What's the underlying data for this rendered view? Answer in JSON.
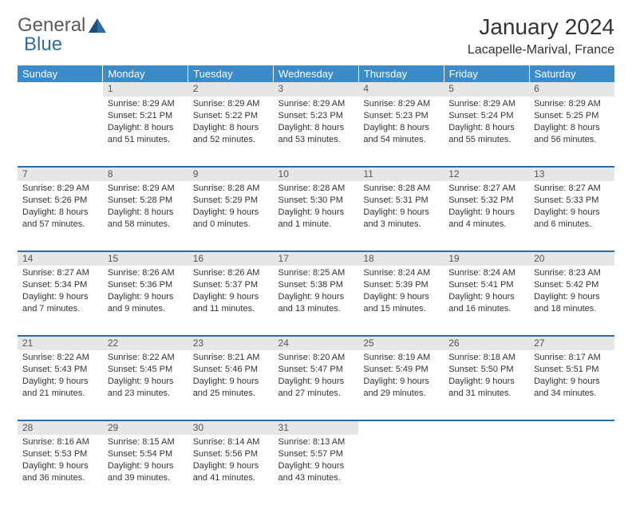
{
  "logo": {
    "text1": "General",
    "text2": "Blue"
  },
  "title": "January 2024",
  "location": "Lacapelle-Marival, France",
  "dayHeaders": [
    "Sunday",
    "Monday",
    "Tuesday",
    "Wednesday",
    "Thursday",
    "Friday",
    "Saturday"
  ],
  "colors": {
    "headerBg": "#3b8bc8",
    "headerText": "#ffffff",
    "dayNumBg": "#e6e6e6",
    "borderRow": "#2f6ca3",
    "logoBlue": "#2f6ca3",
    "textGray": "#5a5a5a"
  },
  "weeks": [
    [
      null,
      {
        "n": "1",
        "sr": "8:29 AM",
        "ss": "5:21 PM",
        "dl": "8 hours and 51 minutes."
      },
      {
        "n": "2",
        "sr": "8:29 AM",
        "ss": "5:22 PM",
        "dl": "8 hours and 52 minutes."
      },
      {
        "n": "3",
        "sr": "8:29 AM",
        "ss": "5:23 PM",
        "dl": "8 hours and 53 minutes."
      },
      {
        "n": "4",
        "sr": "8:29 AM",
        "ss": "5:23 PM",
        "dl": "8 hours and 54 minutes."
      },
      {
        "n": "5",
        "sr": "8:29 AM",
        "ss": "5:24 PM",
        "dl": "8 hours and 55 minutes."
      },
      {
        "n": "6",
        "sr": "8:29 AM",
        "ss": "5:25 PM",
        "dl": "8 hours and 56 minutes."
      }
    ],
    [
      {
        "n": "7",
        "sr": "8:29 AM",
        "ss": "5:26 PM",
        "dl": "8 hours and 57 minutes."
      },
      {
        "n": "8",
        "sr": "8:29 AM",
        "ss": "5:28 PM",
        "dl": "8 hours and 58 minutes."
      },
      {
        "n": "9",
        "sr": "8:28 AM",
        "ss": "5:29 PM",
        "dl": "9 hours and 0 minutes."
      },
      {
        "n": "10",
        "sr": "8:28 AM",
        "ss": "5:30 PM",
        "dl": "9 hours and 1 minute."
      },
      {
        "n": "11",
        "sr": "8:28 AM",
        "ss": "5:31 PM",
        "dl": "9 hours and 3 minutes."
      },
      {
        "n": "12",
        "sr": "8:27 AM",
        "ss": "5:32 PM",
        "dl": "9 hours and 4 minutes."
      },
      {
        "n": "13",
        "sr": "8:27 AM",
        "ss": "5:33 PM",
        "dl": "9 hours and 6 minutes."
      }
    ],
    [
      {
        "n": "14",
        "sr": "8:27 AM",
        "ss": "5:34 PM",
        "dl": "9 hours and 7 minutes."
      },
      {
        "n": "15",
        "sr": "8:26 AM",
        "ss": "5:36 PM",
        "dl": "9 hours and 9 minutes."
      },
      {
        "n": "16",
        "sr": "8:26 AM",
        "ss": "5:37 PM",
        "dl": "9 hours and 11 minutes."
      },
      {
        "n": "17",
        "sr": "8:25 AM",
        "ss": "5:38 PM",
        "dl": "9 hours and 13 minutes."
      },
      {
        "n": "18",
        "sr": "8:24 AM",
        "ss": "5:39 PM",
        "dl": "9 hours and 15 minutes."
      },
      {
        "n": "19",
        "sr": "8:24 AM",
        "ss": "5:41 PM",
        "dl": "9 hours and 16 minutes."
      },
      {
        "n": "20",
        "sr": "8:23 AM",
        "ss": "5:42 PM",
        "dl": "9 hours and 18 minutes."
      }
    ],
    [
      {
        "n": "21",
        "sr": "8:22 AM",
        "ss": "5:43 PM",
        "dl": "9 hours and 21 minutes."
      },
      {
        "n": "22",
        "sr": "8:22 AM",
        "ss": "5:45 PM",
        "dl": "9 hours and 23 minutes."
      },
      {
        "n": "23",
        "sr": "8:21 AM",
        "ss": "5:46 PM",
        "dl": "9 hours and 25 minutes."
      },
      {
        "n": "24",
        "sr": "8:20 AM",
        "ss": "5:47 PM",
        "dl": "9 hours and 27 minutes."
      },
      {
        "n": "25",
        "sr": "8:19 AM",
        "ss": "5:49 PM",
        "dl": "9 hours and 29 minutes."
      },
      {
        "n": "26",
        "sr": "8:18 AM",
        "ss": "5:50 PM",
        "dl": "9 hours and 31 minutes."
      },
      {
        "n": "27",
        "sr": "8:17 AM",
        "ss": "5:51 PM",
        "dl": "9 hours and 34 minutes."
      }
    ],
    [
      {
        "n": "28",
        "sr": "8:16 AM",
        "ss": "5:53 PM",
        "dl": "9 hours and 36 minutes."
      },
      {
        "n": "29",
        "sr": "8:15 AM",
        "ss": "5:54 PM",
        "dl": "9 hours and 39 minutes."
      },
      {
        "n": "30",
        "sr": "8:14 AM",
        "ss": "5:56 PM",
        "dl": "9 hours and 41 minutes."
      },
      {
        "n": "31",
        "sr": "8:13 AM",
        "ss": "5:57 PM",
        "dl": "9 hours and 43 minutes."
      },
      null,
      null,
      null
    ]
  ],
  "labels": {
    "sunrise": "Sunrise:",
    "sunset": "Sunset:",
    "daylight": "Daylight:"
  }
}
